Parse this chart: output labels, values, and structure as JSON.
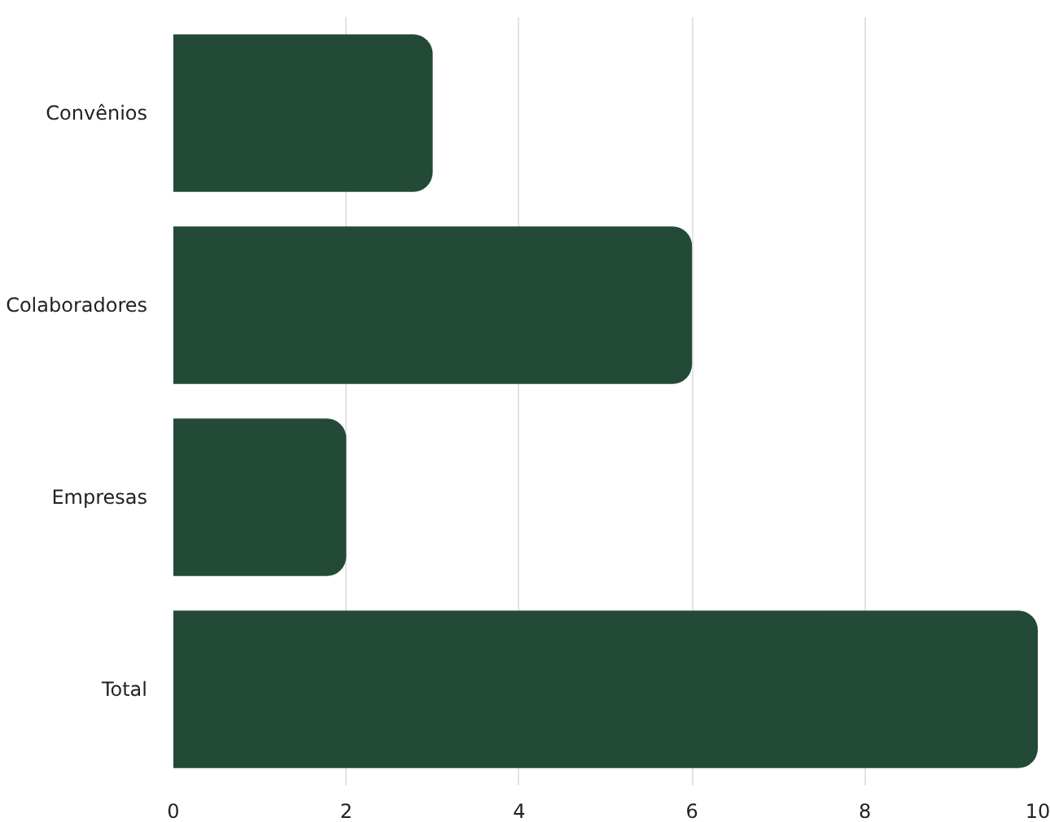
{
  "chart_data": {
    "type": "bar",
    "orientation": "horizontal",
    "categories": [
      "Convênios",
      "Colaboradores",
      "Empresas",
      "Total"
    ],
    "values": [
      3,
      6,
      2,
      10
    ],
    "color": "#234a37",
    "xlim": [
      0,
      10
    ],
    "xticks": [
      0,
      2,
      4,
      6,
      8,
      10
    ],
    "grid": "x"
  }
}
